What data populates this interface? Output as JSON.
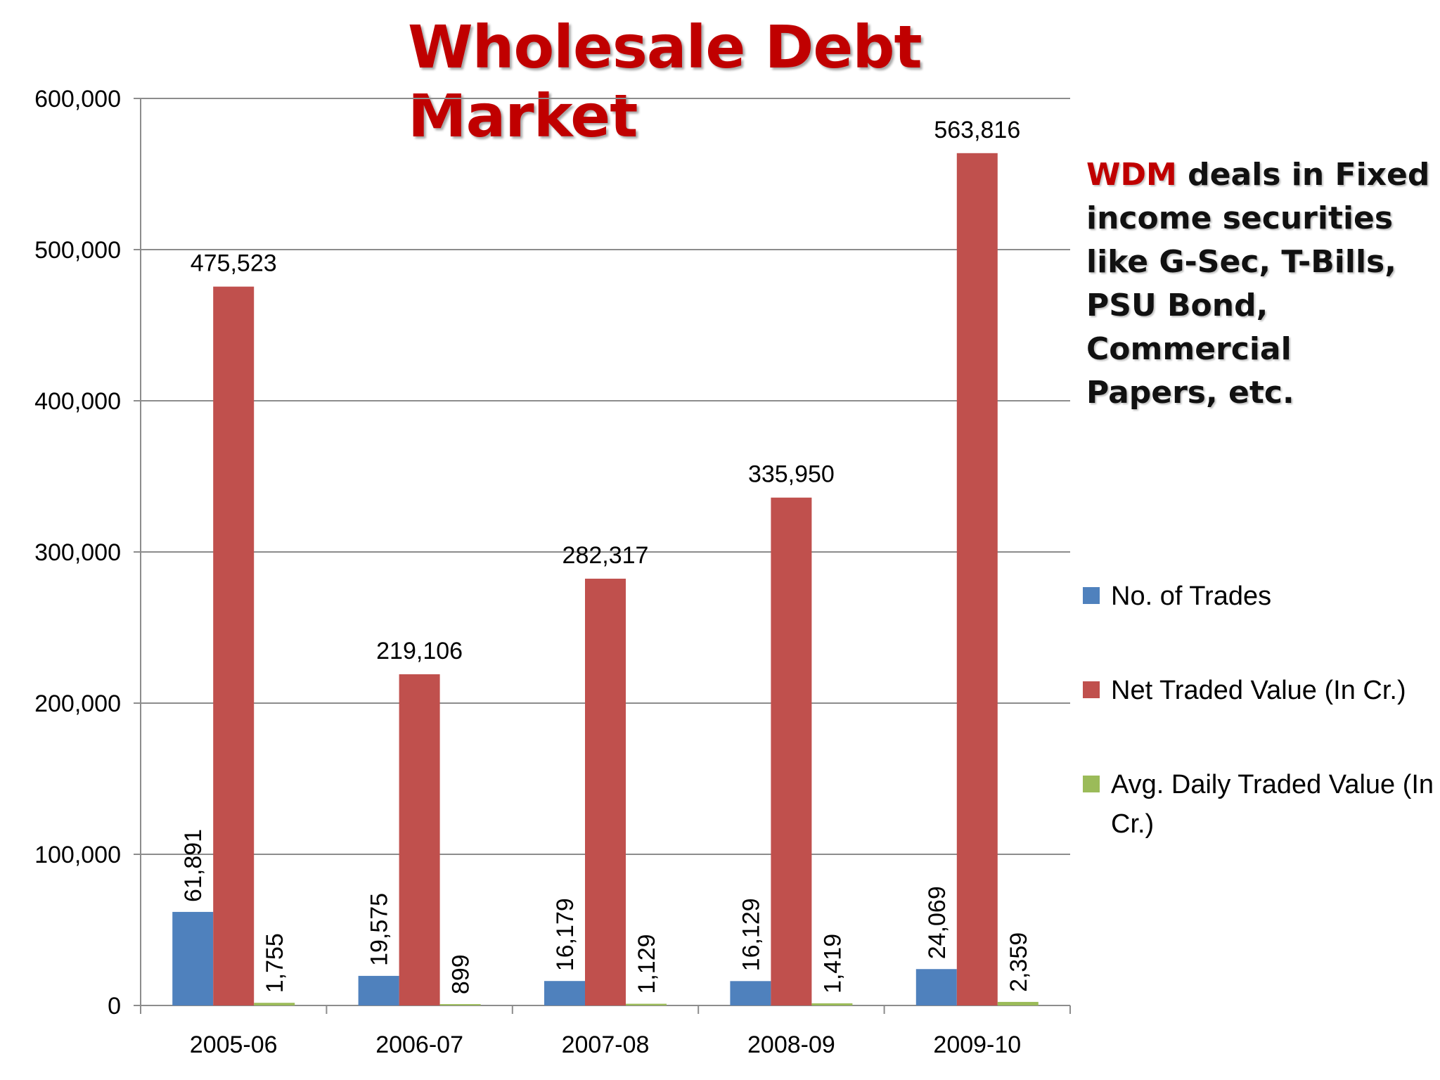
{
  "chart_data": {
    "type": "bar",
    "title": "Wholesale Debt Market",
    "categories": [
      "2005-06",
      "2006-07",
      "2007-08",
      "2008-09",
      "2009-10"
    ],
    "series": [
      {
        "name": "No. of Trades",
        "color": "#4f81bd",
        "values": [
          61891,
          19575,
          16179,
          16129,
          24069
        ],
        "labels": [
          "61,891",
          "19,575",
          "16,179",
          "16,129",
          "24,069"
        ],
        "label_rotated": true
      },
      {
        "name": "Net Traded Value (In Cr.)",
        "color": "#c0504d",
        "values": [
          475523,
          219106,
          282317,
          335950,
          563816
        ],
        "labels": [
          "475,523",
          "219,106",
          "282,317",
          "335,950",
          "563,816"
        ],
        "label_rotated": false
      },
      {
        "name": "Avg. Daily Traded Value (In Cr.)",
        "color": "#9bbb59",
        "values": [
          1755,
          899,
          1129,
          1419,
          2359
        ],
        "labels": [
          "1,755",
          "899",
          "1,129",
          "1,419",
          "2,359"
        ],
        "label_rotated": true
      }
    ],
    "ylim": [
      0,
      600000
    ],
    "yticks": [
      0,
      100000,
      200000,
      300000,
      400000,
      500000,
      600000
    ],
    "ytick_labels": [
      "0",
      "100,000",
      "200,000",
      "300,000",
      "400,000",
      "500,000",
      "600,000"
    ],
    "grid": true,
    "legend_position": "right"
  },
  "note": {
    "highlight": "WDM",
    "text": " deals in Fixed income securities like G-Sec, T-Bills, PSU Bond, Commercial Papers, etc.",
    "highlight_color": "#c00000"
  },
  "legend": {
    "items": [
      {
        "label": "No. of Trades",
        "color": "#4f81bd"
      },
      {
        "label": "Net Traded Value (In Cr.)",
        "color": "#c0504d"
      },
      {
        "label": "Avg. Daily Traded Value (In Cr.)",
        "color": "#9bbb59"
      }
    ]
  }
}
